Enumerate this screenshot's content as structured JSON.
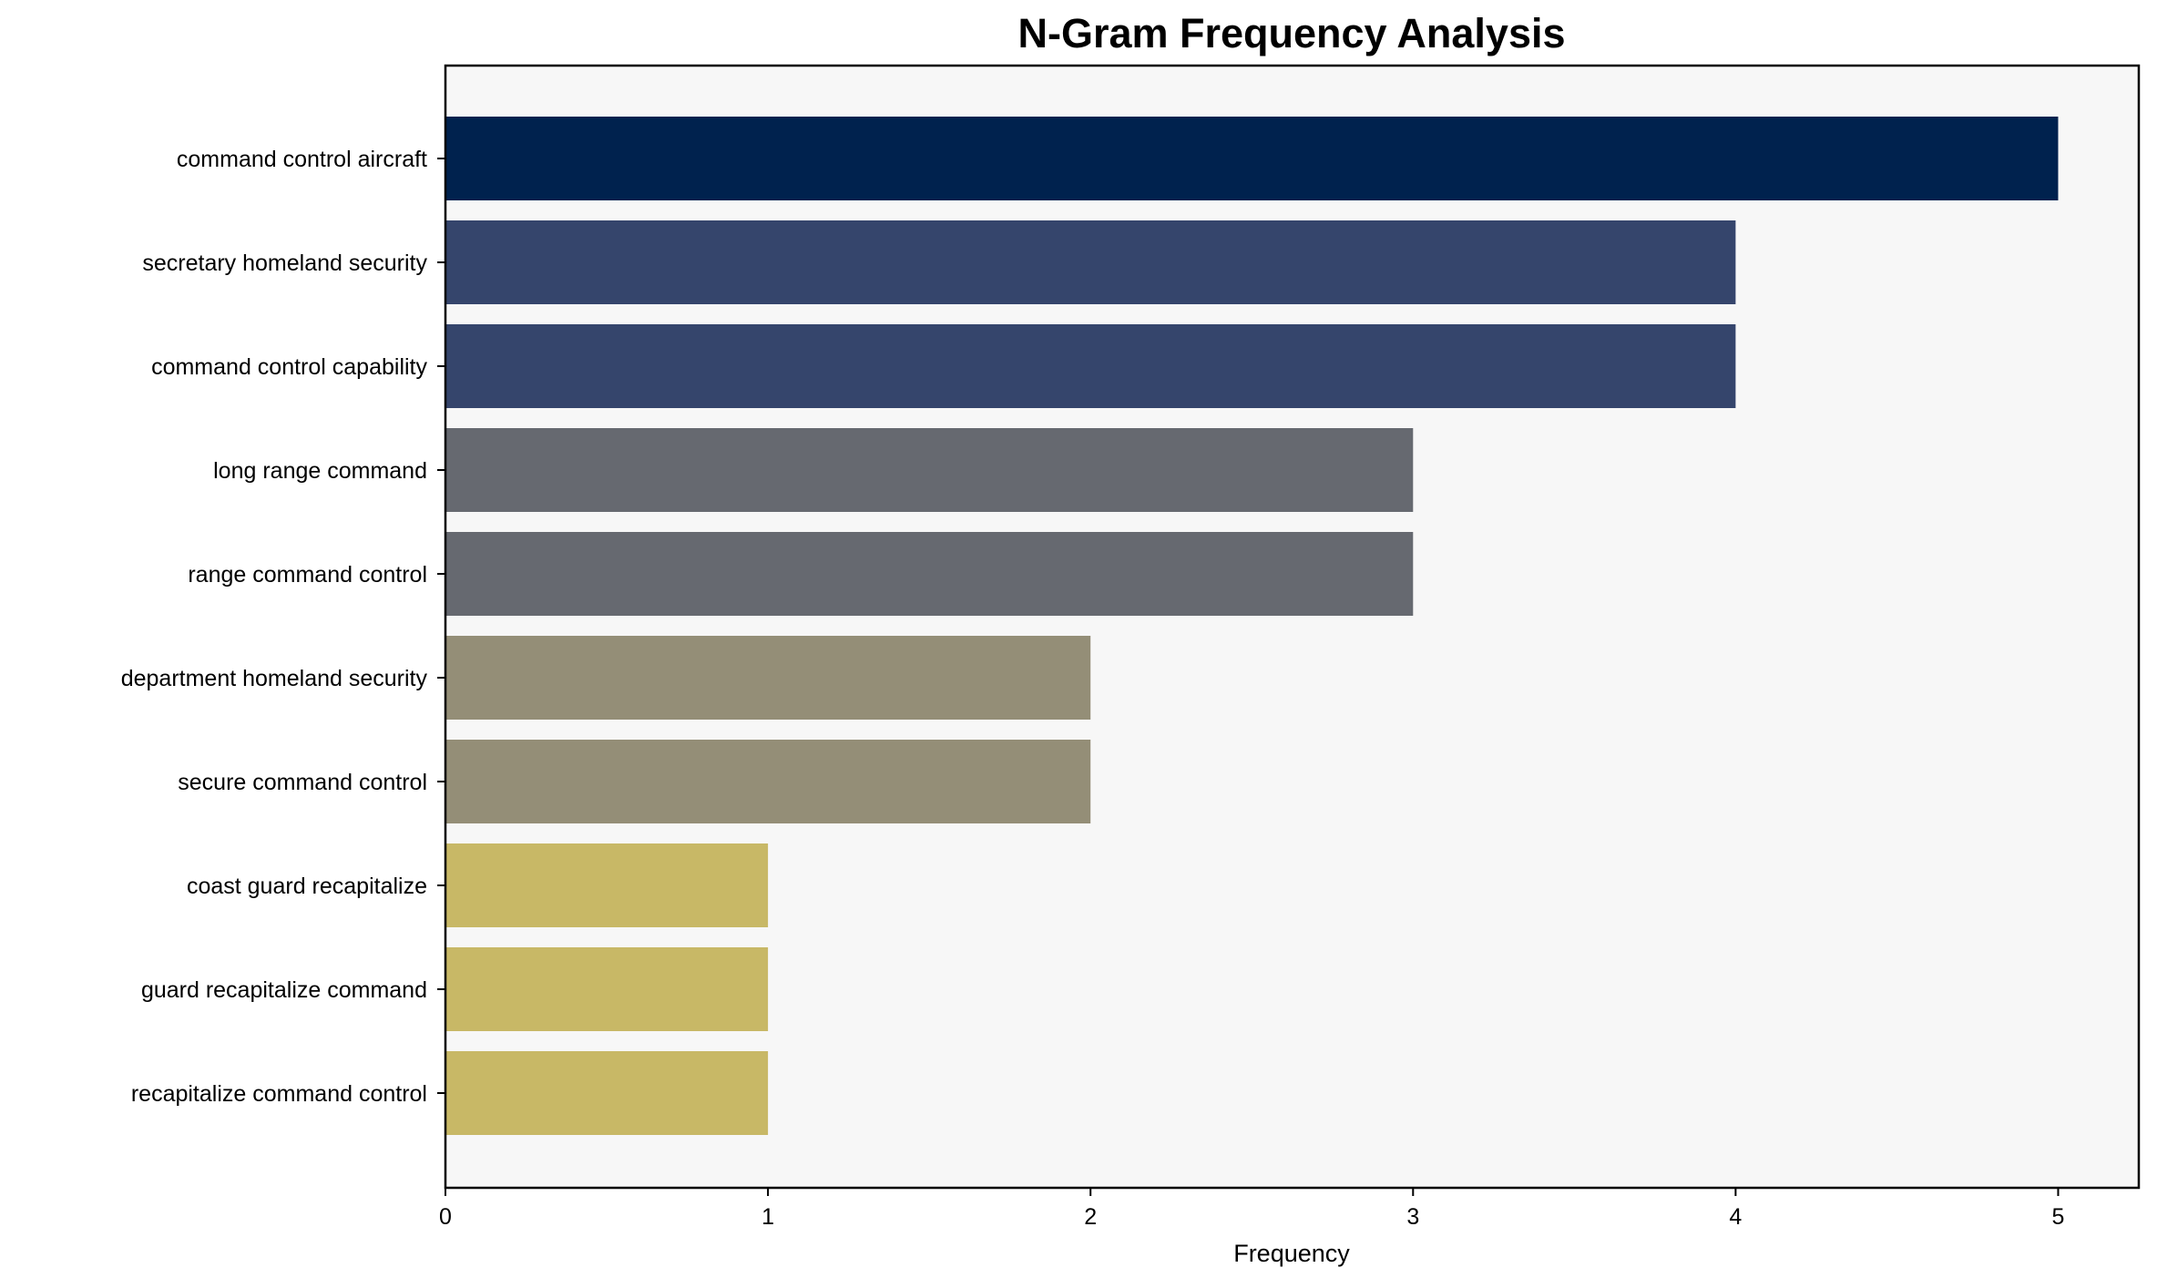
{
  "chart_data": {
    "type": "bar",
    "orientation": "horizontal",
    "title": "N-Gram Frequency Analysis",
    "xlabel": "Frequency",
    "ylabel": "",
    "xlim": [
      0,
      5.25
    ],
    "xticks": [
      "0",
      "1",
      "2",
      "3",
      "4",
      "5"
    ],
    "grid": false,
    "categories": [
      "command control aircraft",
      "secretary homeland security",
      "command control capability",
      "long range command",
      "range command control",
      "department homeland security",
      "secure command control",
      "coast guard recapitalize",
      "guard recapitalize command",
      "recapitalize command control"
    ],
    "values": [
      5,
      4,
      4,
      3,
      3,
      2,
      2,
      1,
      1,
      1
    ],
    "colors": [
      "#00224e",
      "#35456c",
      "#35456c",
      "#666970",
      "#666970",
      "#948e77",
      "#948e77",
      "#c8b866",
      "#c8b866",
      "#c8b866"
    ],
    "plot_background": "#f7f7f7"
  }
}
